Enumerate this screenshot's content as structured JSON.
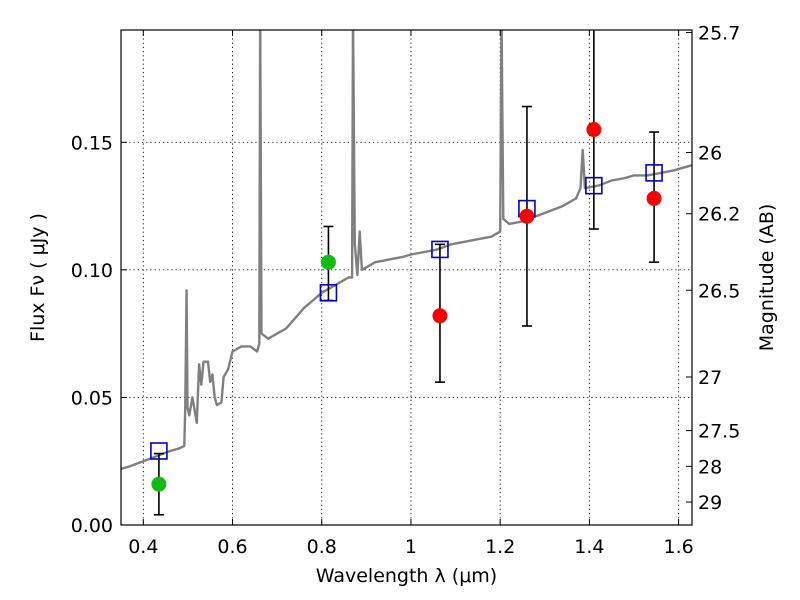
{
  "chart_data": {
    "type": "scatter",
    "title": "",
    "xlabel": "Wavelength  λ (μm)",
    "ylabel": "Flux  Fν  ( μJy )",
    "y2label": "Magnitude (AB)",
    "xlim": [
      0.35,
      1.63
    ],
    "ylim": [
      0.0,
      0.194
    ],
    "x_ticks": [
      0.4,
      0.6,
      0.8,
      1.0,
      1.2,
      1.4,
      1.6
    ],
    "x_tick_labels": [
      "0.4",
      "0.6",
      "0.8",
      "1",
      "1.2",
      "1.4",
      "1.6"
    ],
    "y_ticks": [
      0.0,
      0.05,
      0.1,
      0.15
    ],
    "y_tick_labels": [
      "0.00",
      "0.05",
      "0.10",
      "0.15"
    ],
    "y2_ticks": [
      {
        "label": "25.7",
        "flux": 0.193
      },
      {
        "label": "26",
        "flux": 0.146
      },
      {
        "label": "26.2",
        "flux": 0.122
      },
      {
        "label": "26.5",
        "flux": 0.092
      },
      {
        "label": "27",
        "flux": 0.058
      },
      {
        "label": "27.5",
        "flux": 0.037
      },
      {
        "label": "28",
        "flux": 0.023
      },
      {
        "label": "29",
        "flux": 0.009
      }
    ],
    "grid": true,
    "colors": {
      "model": "#808080",
      "detection_green": "#11bb11",
      "detection_red": "#ff0000",
      "synthetic_box": "#0000cc",
      "errorbar": "#000000"
    },
    "series": [
      {
        "kind": "line",
        "points": [
          [
            0.35,
            0.022
          ],
          [
            0.37,
            0.023
          ],
          [
            0.4,
            0.025
          ],
          [
            0.43,
            0.027
          ],
          [
            0.46,
            0.029
          ],
          [
            0.48,
            0.03
          ],
          [
            0.492,
            0.031
          ],
          [
            0.494,
            0.045
          ],
          [
            0.497,
            0.092
          ],
          [
            0.499,
            0.046
          ],
          [
            0.503,
            0.043
          ],
          [
            0.51,
            0.05
          ],
          [
            0.52,
            0.04
          ],
          [
            0.525,
            0.063
          ],
          [
            0.53,
            0.055
          ],
          [
            0.535,
            0.064
          ],
          [
            0.545,
            0.064
          ],
          [
            0.55,
            0.056
          ],
          [
            0.555,
            0.059
          ],
          [
            0.56,
            0.05
          ],
          [
            0.565,
            0.047
          ],
          [
            0.575,
            0.048
          ],
          [
            0.58,
            0.058
          ],
          [
            0.59,
            0.061
          ],
          [
            0.6,
            0.068
          ],
          [
            0.62,
            0.07
          ],
          [
            0.64,
            0.07
          ],
          [
            0.655,
            0.068
          ],
          [
            0.66,
            0.071
          ],
          [
            0.662,
            0.2
          ],
          [
            0.665,
            0.075
          ],
          [
            0.68,
            0.073
          ],
          [
            0.7,
            0.075
          ],
          [
            0.72,
            0.077
          ],
          [
            0.74,
            0.081
          ],
          [
            0.76,
            0.085
          ],
          [
            0.78,
            0.088
          ],
          [
            0.8,
            0.091
          ],
          [
            0.82,
            0.093
          ],
          [
            0.84,
            0.095
          ],
          [
            0.86,
            0.097
          ],
          [
            0.868,
            0.097
          ],
          [
            0.87,
            0.2
          ],
          [
            0.874,
            0.11
          ],
          [
            0.88,
            0.098
          ],
          [
            0.885,
            0.115
          ],
          [
            0.89,
            0.1
          ],
          [
            0.9,
            0.101
          ],
          [
            0.92,
            0.103
          ],
          [
            0.95,
            0.104
          ],
          [
            0.98,
            0.105
          ],
          [
            1.0,
            0.106
          ],
          [
            1.03,
            0.107
          ],
          [
            1.06,
            0.108
          ],
          [
            1.09,
            0.11
          ],
          [
            1.12,
            0.111
          ],
          [
            1.15,
            0.112
          ],
          [
            1.18,
            0.113
          ],
          [
            1.2,
            0.115
          ],
          [
            1.203,
            0.2
          ],
          [
            1.207,
            0.12
          ],
          [
            1.22,
            0.118
          ],
          [
            1.25,
            0.119
          ],
          [
            1.28,
            0.121
          ],
          [
            1.31,
            0.123
          ],
          [
            1.34,
            0.125
          ],
          [
            1.37,
            0.128
          ],
          [
            1.38,
            0.132
          ],
          [
            1.385,
            0.147
          ],
          [
            1.39,
            0.132
          ],
          [
            1.42,
            0.133
          ],
          [
            1.45,
            0.135
          ],
          [
            1.48,
            0.136
          ],
          [
            1.5,
            0.137
          ],
          [
            1.53,
            0.137
          ],
          [
            1.56,
            0.138
          ],
          [
            1.59,
            0.139
          ],
          [
            1.63,
            0.141
          ]
        ]
      },
      {
        "kind": "points",
        "marker": "circle",
        "color": "detection_green",
        "points": [
          {
            "x": 0.435,
            "y": 0.016,
            "err": [
              0.004,
              0.028
            ]
          },
          {
            "x": 0.815,
            "y": 0.103,
            "err": [
              0.088,
              0.117
            ]
          }
        ]
      },
      {
        "kind": "points",
        "marker": "circle",
        "color": "detection_red",
        "points": [
          {
            "x": 1.065,
            "y": 0.082,
            "err": [
              0.056,
              0.11
            ]
          },
          {
            "x": 1.26,
            "y": 0.121,
            "err": [
              0.078,
              0.164
            ]
          },
          {
            "x": 1.41,
            "y": 0.155,
            "err": [
              0.116,
              0.196
            ]
          },
          {
            "x": 1.545,
            "y": 0.128,
            "err": [
              0.103,
              0.154
            ]
          }
        ]
      },
      {
        "kind": "points",
        "marker": "square",
        "color": "synthetic_box",
        "points": [
          {
            "x": 0.435,
            "y": 0.029
          },
          {
            "x": 0.815,
            "y": 0.091
          },
          {
            "x": 1.065,
            "y": 0.108
          },
          {
            "x": 1.26,
            "y": 0.124
          },
          {
            "x": 1.41,
            "y": 0.133
          },
          {
            "x": 1.545,
            "y": 0.138
          }
        ]
      }
    ]
  }
}
